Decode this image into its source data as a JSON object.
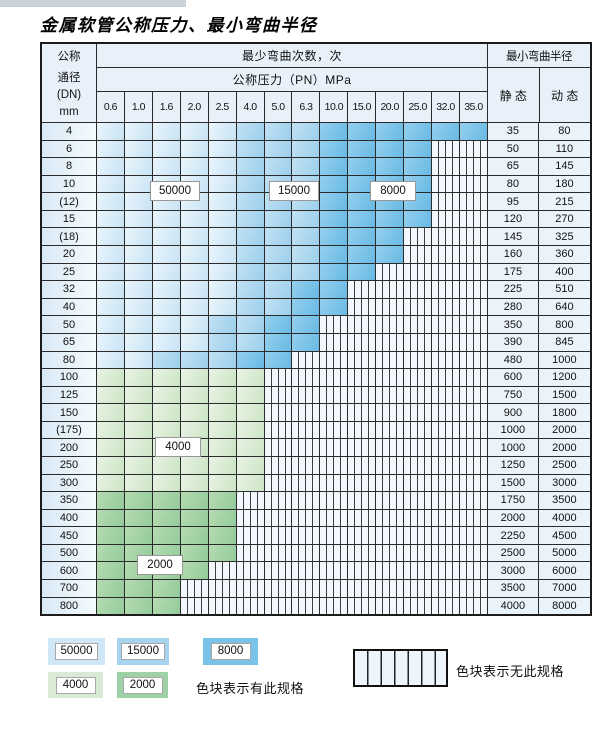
{
  "title": "金属软管公称压力、最小弯曲半径",
  "header": {
    "dn_lines": [
      "公称",
      "通径",
      "(DN)",
      "mm"
    ],
    "bend_cycles": "最少弯曲次数，次",
    "pressure_title": "公称压力（PN）MPa",
    "min_radius": "最小弯曲半径",
    "static_label": "静 态",
    "dynamic_label": "动 态",
    "pressures": [
      "0.6",
      "1.0",
      "1.6",
      "2.0",
      "2.5",
      "4.0",
      "5.0",
      "6.3",
      "10.0",
      "15.0",
      "20.0",
      "25.0",
      "32.0",
      "35.0"
    ]
  },
  "cell_legend": {
    "L": "50000次-浅蓝",
    "M": "15000次-中蓝",
    "D": "8000次-深蓝",
    "g": "4000次-浅绿",
    "G": "2000次-中绿",
    "x": "无此规格-白色竖线"
  },
  "colors": {
    "blue_50000": "#cfe7f6",
    "blue_15000": "#a6d4ee",
    "blue_8000": "#79c2e8",
    "green_4000": "#d9ebd4",
    "green_2000": "#9ed2a6",
    "header_bg": "#e8f1f9",
    "grid_line": "#2b2b2b"
  },
  "rows": [
    {
      "dn": "4",
      "cells": "LLLLLMMMDDDDDD",
      "static": "35",
      "dynamic": "80"
    },
    {
      "dn": "6",
      "cells": "LLLLLMMMDDDDxx",
      "static": "50",
      "dynamic": "110"
    },
    {
      "dn": "8",
      "cells": "LLLLLMMMDDDDxx",
      "static": "65",
      "dynamic": "145"
    },
    {
      "dn": "10",
      "cells": "LLLLLMMMDDDDxx",
      "static": "80",
      "dynamic": "180"
    },
    {
      "dn": "(12)",
      "cells": "LLLLLMMMDDDDxx",
      "static": "95",
      "dynamic": "215"
    },
    {
      "dn": "15",
      "cells": "LLLLLMMMDDDDxx",
      "static": "120",
      "dynamic": "270"
    },
    {
      "dn": "(18)",
      "cells": "LLLLLMMMDDDxxx",
      "static": "145",
      "dynamic": "325"
    },
    {
      "dn": "20",
      "cells": "LLLLLMMMDDDxxx",
      "static": "160",
      "dynamic": "360"
    },
    {
      "dn": "25",
      "cells": "LLLLLMMMDDxxxx",
      "static": "175",
      "dynamic": "400"
    },
    {
      "dn": "32",
      "cells": "LLLLLMMDDxxxxx",
      "static": "225",
      "dynamic": "510"
    },
    {
      "dn": "40",
      "cells": "LLLLLMMDDxxxxx",
      "static": "280",
      "dynamic": "640"
    },
    {
      "dn": "50",
      "cells": "LLLLMMDDxxxxxx",
      "static": "350",
      "dynamic": "800"
    },
    {
      "dn": "65",
      "cells": "LLLLMMDDxxxxxx",
      "static": "390",
      "dynamic": "845"
    },
    {
      "dn": "80",
      "cells": "LLMMMDDxxxxxxx",
      "static": "480",
      "dynamic": "1000"
    },
    {
      "dn": "100",
      "cells": "ggggggxxxxxxxx",
      "static": "600",
      "dynamic": "1200"
    },
    {
      "dn": "125",
      "cells": "ggggggxxxxxxxx",
      "static": "750",
      "dynamic": "1500"
    },
    {
      "dn": "150",
      "cells": "ggggggxxxxxxxx",
      "static": "900",
      "dynamic": "1800"
    },
    {
      "dn": "(175)",
      "cells": "ggggggxxxxxxxx",
      "static": "1000",
      "dynamic": "2000"
    },
    {
      "dn": "200",
      "cells": "ggggggxxxxxxxx",
      "static": "1000",
      "dynamic": "2000"
    },
    {
      "dn": "250",
      "cells": "ggggggxxxxxxxx",
      "static": "1250",
      "dynamic": "2500"
    },
    {
      "dn": "300",
      "cells": "ggggggxxxxxxxx",
      "static": "1500",
      "dynamic": "3000"
    },
    {
      "dn": "350",
      "cells": "GGGGGxxxxxxxxx",
      "static": "1750",
      "dynamic": "3500"
    },
    {
      "dn": "400",
      "cells": "GGGGGxxxxxxxxx",
      "static": "2000",
      "dynamic": "4000"
    },
    {
      "dn": "450",
      "cells": "GGGGGxxxxxxxxx",
      "static": "2250",
      "dynamic": "4500"
    },
    {
      "dn": "500",
      "cells": "GGGGGxxxxxxxxx",
      "static": "2500",
      "dynamic": "5000"
    },
    {
      "dn": "600",
      "cells": "GGGGxxxxxxxxxx",
      "static": "3000",
      "dynamic": "6000"
    },
    {
      "dn": "700",
      "cells": "GGGxxxxxxxxxxx",
      "static": "3500",
      "dynamic": "7000"
    },
    {
      "dn": "800",
      "cells": "GGGxxxxxxxxxxx",
      "static": "4000",
      "dynamic": "8000"
    }
  ],
  "overlays": {
    "b50000": "50000",
    "b15000": "15000",
    "b8000": "8000",
    "g4000": "4000",
    "g2000": "2000"
  },
  "legend": {
    "chips": [
      {
        "label": "50000"
      },
      {
        "label": "15000"
      },
      {
        "label": "8000"
      },
      {
        "label": "4000"
      },
      {
        "label": "2000"
      }
    ],
    "has_spec_text": "色块表示有此规格",
    "no_spec_text": "色块表示无此规格"
  }
}
